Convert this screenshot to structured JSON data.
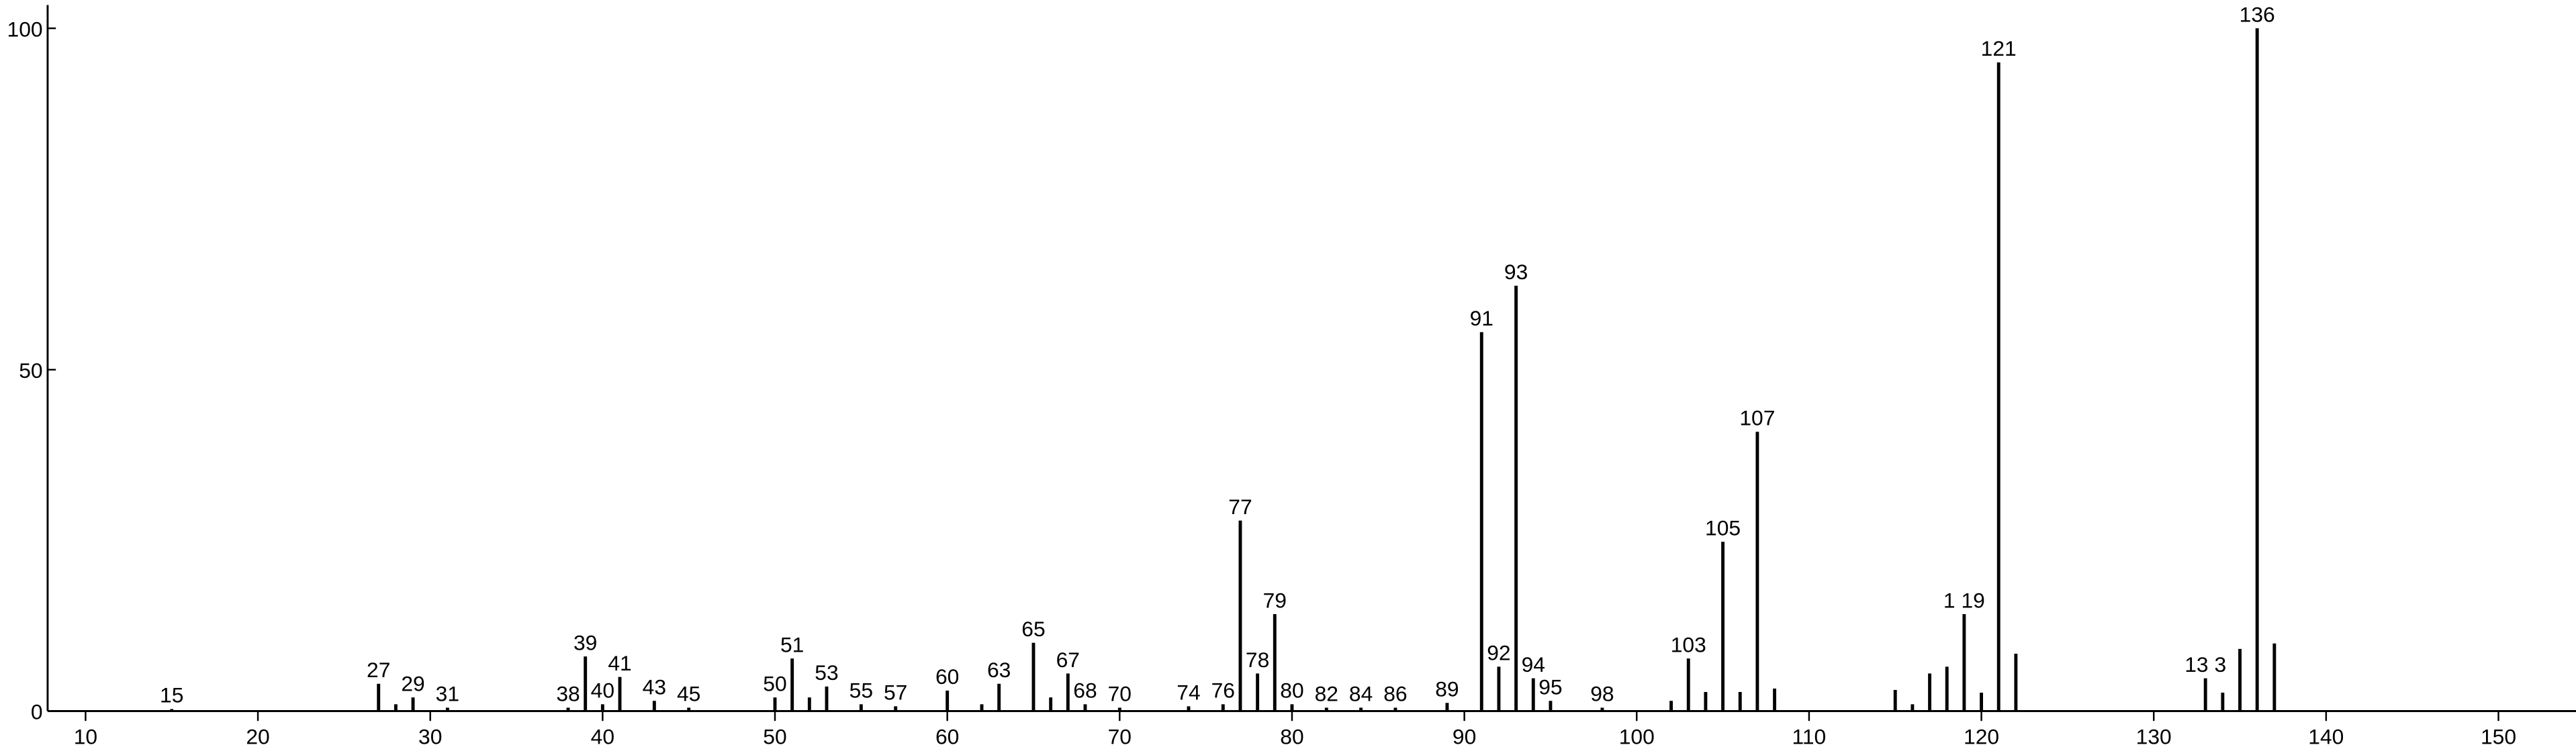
{
  "chart_data": {
    "type": "bar",
    "x": [
      15,
      27,
      28,
      29,
      31,
      38,
      39,
      40,
      41,
      43,
      45,
      50,
      51,
      52,
      53,
      55,
      57,
      60,
      62,
      63,
      65,
      66,
      67,
      68,
      70,
      74,
      76,
      77,
      78,
      79,
      80,
      82,
      84,
      86,
      89,
      91,
      92,
      93,
      94,
      95,
      98,
      102,
      103,
      104,
      105,
      106,
      107,
      108,
      115,
      116,
      117,
      118,
      119,
      120,
      121,
      122,
      133,
      134,
      135,
      136,
      137
    ],
    "values": [
      0.3,
      4,
      1,
      2,
      0.5,
      0.5,
      8,
      1,
      5,
      1.5,
      0.5,
      2,
      7.7,
      2,
      3.6,
      1,
      0.7,
      3,
      1,
      4,
      10,
      2,
      5.5,
      1,
      0.5,
      0.7,
      1,
      27.9,
      5.5,
      14.2,
      1,
      0.5,
      0.5,
      0.5,
      1.2,
      55.5,
      6.5,
      62.3,
      4.8,
      1.5,
      0.5,
      1.5,
      7.7,
      2.8,
      24.8,
      2.8,
      40.9,
      3.3,
      3.1,
      1,
      5.5,
      6.5,
      14.2,
      2.7,
      95,
      8.4,
      4.8,
      2.7,
      9.1,
      100,
      9.9
    ],
    "labels": [
      "15",
      "27",
      null,
      "29",
      "31",
      "38",
      "39",
      "40",
      "41",
      "43",
      "45",
      "50",
      "51",
      null,
      "53",
      "55",
      "57",
      "60",
      null,
      "63",
      "65",
      null,
      "67",
      "68",
      "70",
      "74",
      "76",
      "77",
      "78",
      "79",
      "80",
      "82",
      "84",
      "86",
      "89",
      "91",
      "92",
      "93",
      "94",
      "95",
      "98",
      null,
      "103",
      null,
      "105",
      null,
      "107",
      null,
      null,
      null,
      null,
      null,
      "1 19",
      null,
      "121",
      null,
      "13 3",
      null,
      null,
      "136",
      null
    ],
    "color": "#000000",
    "xlim": [
      7.8,
      154.5
    ],
    "xticks": [
      10,
      20,
      30,
      40,
      50,
      60,
      70,
      80,
      90,
      100,
      110,
      120,
      130,
      140,
      150
    ],
    "ylim": [
      0,
      103.4
    ],
    "yticks": [
      0,
      50,
      100
    ]
  }
}
